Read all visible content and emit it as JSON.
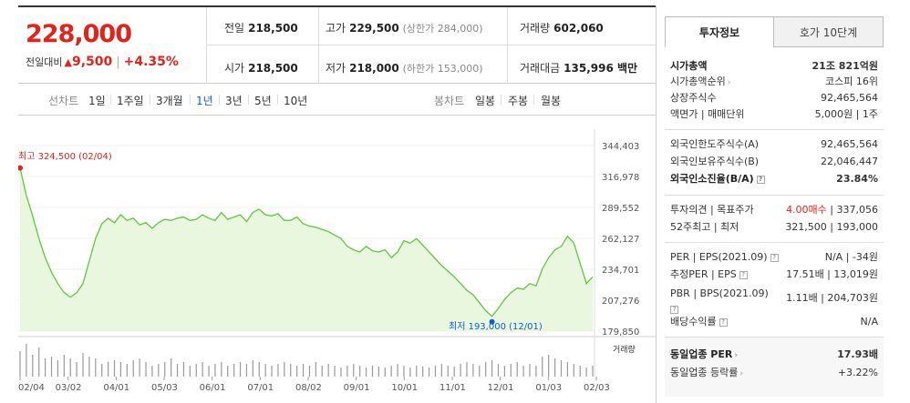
{
  "summary": {
    "price": "228,000",
    "change_label": "전일대비",
    "change_arrow": "▲",
    "change_amount": "9,500",
    "change_sep": "|",
    "change_pct": "+4.35%",
    "prev_label": "전일",
    "prev_value": "218,500",
    "high_label": "고가",
    "high_value": "229,500",
    "upper_limit": "(상한가 284,000)",
    "volume_label": "거래량",
    "volume_value": "602,060",
    "open_label": "시가",
    "open_value": "218,500",
    "low_label": "저가",
    "low_value": "218,000",
    "lower_limit": "(하한가 153,000)",
    "amount_label": "거래대금",
    "amount_value": "135,996 백만"
  },
  "period_bar": {
    "line_label": "선차트",
    "line_periods": [
      "1일",
      "1주일",
      "3개월",
      "1년",
      "3년",
      "5년",
      "10년"
    ],
    "active_period": "1년",
    "candle_label": "봉차트",
    "candle_periods": [
      "일봉",
      "주봉",
      "월봉"
    ]
  },
  "chart_data": {
    "type": "area",
    "x": [
      "02/04",
      "02/08",
      "02/12",
      "02/16",
      "02/20",
      "02/24",
      "02/28",
      "03/04",
      "03/08",
      "03/12",
      "03/16",
      "03/20",
      "03/24",
      "03/28",
      "04/01",
      "04/05",
      "04/09",
      "04/13",
      "04/17",
      "04/21",
      "04/25",
      "04/29",
      "05/03",
      "05/07",
      "05/11",
      "05/15",
      "05/19",
      "05/23",
      "05/27",
      "05/31",
      "06/04",
      "06/08",
      "06/12",
      "06/16",
      "06/20",
      "06/24",
      "06/28",
      "07/02",
      "07/06",
      "07/10",
      "07/14",
      "07/18",
      "07/22",
      "07/26",
      "07/30",
      "08/03",
      "08/07",
      "08/11",
      "08/15",
      "08/19",
      "08/23",
      "08/27",
      "08/31",
      "09/04",
      "09/08",
      "09/12",
      "09/16",
      "09/20",
      "09/24",
      "09/28",
      "10/02",
      "10/06",
      "10/10",
      "10/14",
      "10/18",
      "10/22",
      "10/26",
      "10/30",
      "11/03",
      "11/07",
      "11/11",
      "11/15",
      "11/19",
      "11/23",
      "11/27",
      "12/01",
      "12/05",
      "12/09",
      "12/13",
      "12/17",
      "12/21",
      "12/25",
      "12/29",
      "01/02",
      "01/06",
      "01/10",
      "01/14",
      "01/18",
      "01/22",
      "01/26",
      "01/30",
      "02/03"
    ],
    "y": [
      324500,
      300000,
      282000,
      262000,
      245000,
      232000,
      222000,
      214000,
      210000,
      214000,
      222000,
      242000,
      262000,
      275000,
      280000,
      276000,
      283000,
      278000,
      280000,
      274000,
      276000,
      271000,
      276000,
      279000,
      278000,
      280000,
      281000,
      278000,
      279000,
      283000,
      280000,
      278000,
      285000,
      279000,
      281000,
      283000,
      277000,
      285000,
      288000,
      283000,
      282000,
      284000,
      278000,
      278000,
      281000,
      275000,
      273000,
      272000,
      270000,
      268000,
      265000,
      262000,
      255000,
      252000,
      250000,
      255000,
      251000,
      250000,
      252000,
      245000,
      250000,
      260000,
      258000,
      262000,
      256000,
      250000,
      244000,
      238000,
      233000,
      228000,
      222000,
      216000,
      212000,
      205000,
      198000,
      193000,
      200000,
      208000,
      214000,
      218000,
      217000,
      222000,
      220000,
      235000,
      245000,
      252000,
      255000,
      264000,
      258000,
      240000,
      222000,
      228000
    ],
    "ylim": [
      179850,
      344403
    ],
    "yticks": [
      "344,403",
      "316,978",
      "289,552",
      "262,127",
      "234,701",
      "207,276",
      "179,850"
    ],
    "xticks": [
      "02/04",
      "03/02",
      "04/01",
      "05/03",
      "06/01",
      "07/01",
      "08/02",
      "09/01",
      "10/01",
      "11/01",
      "12/01",
      "01/03",
      "02/03"
    ],
    "high_label": "최고 324,500 (02/04)",
    "low_label": "최저 193,000 (12/01)",
    "volume_label": "거래량",
    "volume": [
      0.7,
      0.9,
      0.6,
      0.8,
      0.5,
      0.55,
      0.45,
      0.6,
      0.5,
      0.4,
      0.65,
      0.55,
      0.5,
      0.35,
      0.4,
      0.45,
      0.4,
      0.35,
      0.45,
      0.5,
      0.4,
      0.3,
      0.35,
      0.4,
      0.5,
      0.35,
      0.4,
      0.3,
      0.35,
      0.4,
      0.3,
      0.35,
      0.4,
      0.3,
      0.35,
      0.4,
      0.35,
      0.45,
      0.4,
      0.35,
      0.3,
      0.35,
      0.4,
      0.35,
      0.3,
      0.35,
      0.3,
      0.4,
      0.3,
      0.35,
      0.3,
      0.25,
      0.3,
      0.35,
      0.3,
      0.25,
      0.3,
      0.28,
      0.25,
      0.3,
      0.35,
      0.3,
      0.25,
      0.3,
      0.28,
      0.25,
      0.3,
      0.35,
      0.3,
      0.28,
      0.35,
      0.4,
      0.35,
      0.3,
      0.4,
      0.45,
      0.35,
      0.3,
      0.35,
      0.4,
      0.3,
      0.35,
      0.3,
      0.55,
      0.6,
      0.5,
      0.45,
      0.4,
      0.35,
      0.3,
      0.25,
      0.3
    ],
    "colors": {
      "line": "#5fc73c",
      "fill": "#e9f7df",
      "high_marker": "#e2231a",
      "low_marker": "#0d5fc9",
      "volume": "#999999"
    }
  },
  "invest_panel": {
    "tab_active": "투자정보",
    "tab_inactive": "호가 10단계",
    "market_cap_label": "시가총액",
    "market_cap_value": "21조 821억원",
    "rank_label": "시가총액순위",
    "rank_value": "코스피 16위",
    "shares_label": "상장주식수",
    "shares_value": "92,465,564",
    "face_label": "액면가 | 매매단위",
    "face_value": "5,000원 | 1주",
    "foreign_limit_label": "외국인한도주식수(A)",
    "foreign_limit_value": "92,465,564",
    "foreign_hold_label": "외국인보유주식수(B)",
    "foreign_hold_value": "22,046,447",
    "foreign_rate_label": "외국인소진율(B/A)",
    "foreign_rate_value": "23.84%",
    "opinion_label": "투자의견 | 목표주가",
    "opinion_value_red": "4.00매수",
    "opinion_value_rest": "| 337,056",
    "w52_label": "52주최고 | 최저",
    "w52_value": "321,500 | 193,000",
    "per_label": "PER | EPS(2021.09)",
    "per_value": "N/A | -34원",
    "est_per_label": "추정PER | EPS",
    "est_per_value": "17.51배 | 13,019원",
    "pbr_label": "PBR | BPS(2021.09)",
    "pbr_value": "1.11배 | 204,703원",
    "div_label": "배당수익률",
    "div_value": "N/A",
    "sector_per_label": "동일업종 PER",
    "sector_per_value": "17.93배",
    "sector_rate_label": "동일업종 등락률",
    "sector_rate_value": "+3.22%",
    "help_glyph": "?",
    "arrow_glyph": "›"
  }
}
